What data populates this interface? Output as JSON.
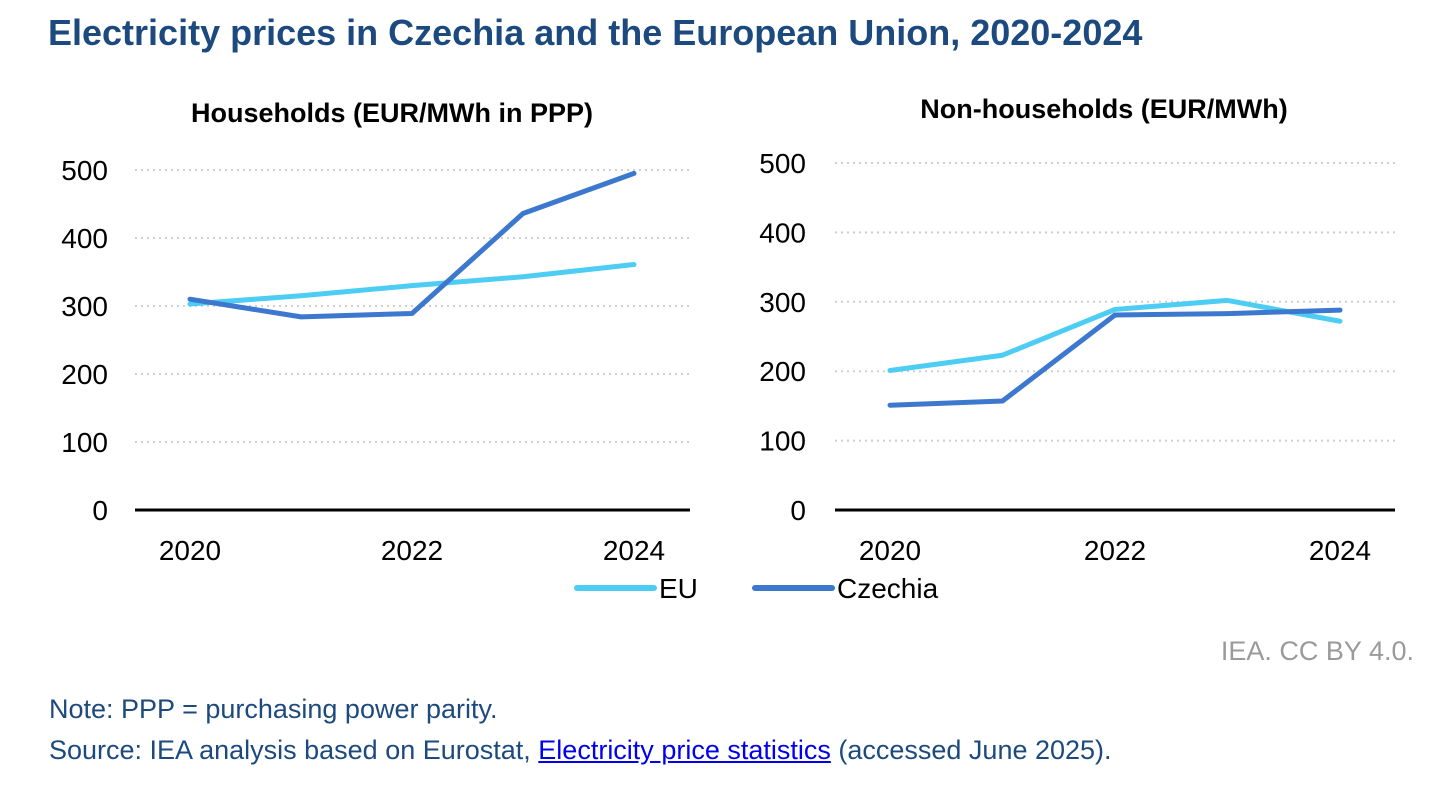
{
  "title": "Electricity prices in Czechia and the European Union, 2020-2024",
  "credit": "IEA. CC BY 4.0.",
  "note": "Note: PPP = purchasing power parity.",
  "source": {
    "prefix": "Source: IEA analysis based on Eurostat,",
    "link": "Electricity price statistics",
    "suffix": "(accessed June 2025)."
  },
  "colors": {
    "eu": "#4dcdf4",
    "czechia": "#3d78cf",
    "title": "#1d4a7e",
    "grid": "#cfcfcf"
  },
  "legend": [
    {
      "key": "eu",
      "label": "EU"
    },
    {
      "key": "czechia",
      "label": "Czechia"
    }
  ],
  "chart_data": [
    {
      "type": "line",
      "title": "Households (EUR/MWh in PPP)",
      "x": [
        2020,
        2021,
        2022,
        2023,
        2024
      ],
      "x_tick_labels": [
        "2020",
        "2022",
        "2024"
      ],
      "ylim": [
        0,
        500
      ],
      "y_ticks": [
        0,
        100,
        200,
        300,
        400,
        500
      ],
      "grid": true,
      "series": [
        {
          "name": "EU",
          "key": "eu",
          "values": [
            303,
            315,
            330,
            343,
            361
          ]
        },
        {
          "name": "Czechia",
          "key": "czechia",
          "values": [
            310,
            284,
            289,
            436,
            495
          ]
        }
      ]
    },
    {
      "type": "line",
      "title": "Non-households (EUR/MWh)",
      "x": [
        2020,
        2021,
        2022,
        2023,
        2024
      ],
      "x_tick_labels": [
        "2020",
        "2022",
        "2024"
      ],
      "ylim": [
        0,
        500
      ],
      "y_ticks": [
        0,
        100,
        200,
        300,
        400,
        500
      ],
      "grid": true,
      "series": [
        {
          "name": "EU",
          "key": "eu",
          "values": [
            201,
            223,
            289,
            302,
            272
          ]
        },
        {
          "name": "Czechia",
          "key": "czechia",
          "values": [
            151,
            157,
            281,
            283,
            288
          ]
        }
      ]
    }
  ]
}
